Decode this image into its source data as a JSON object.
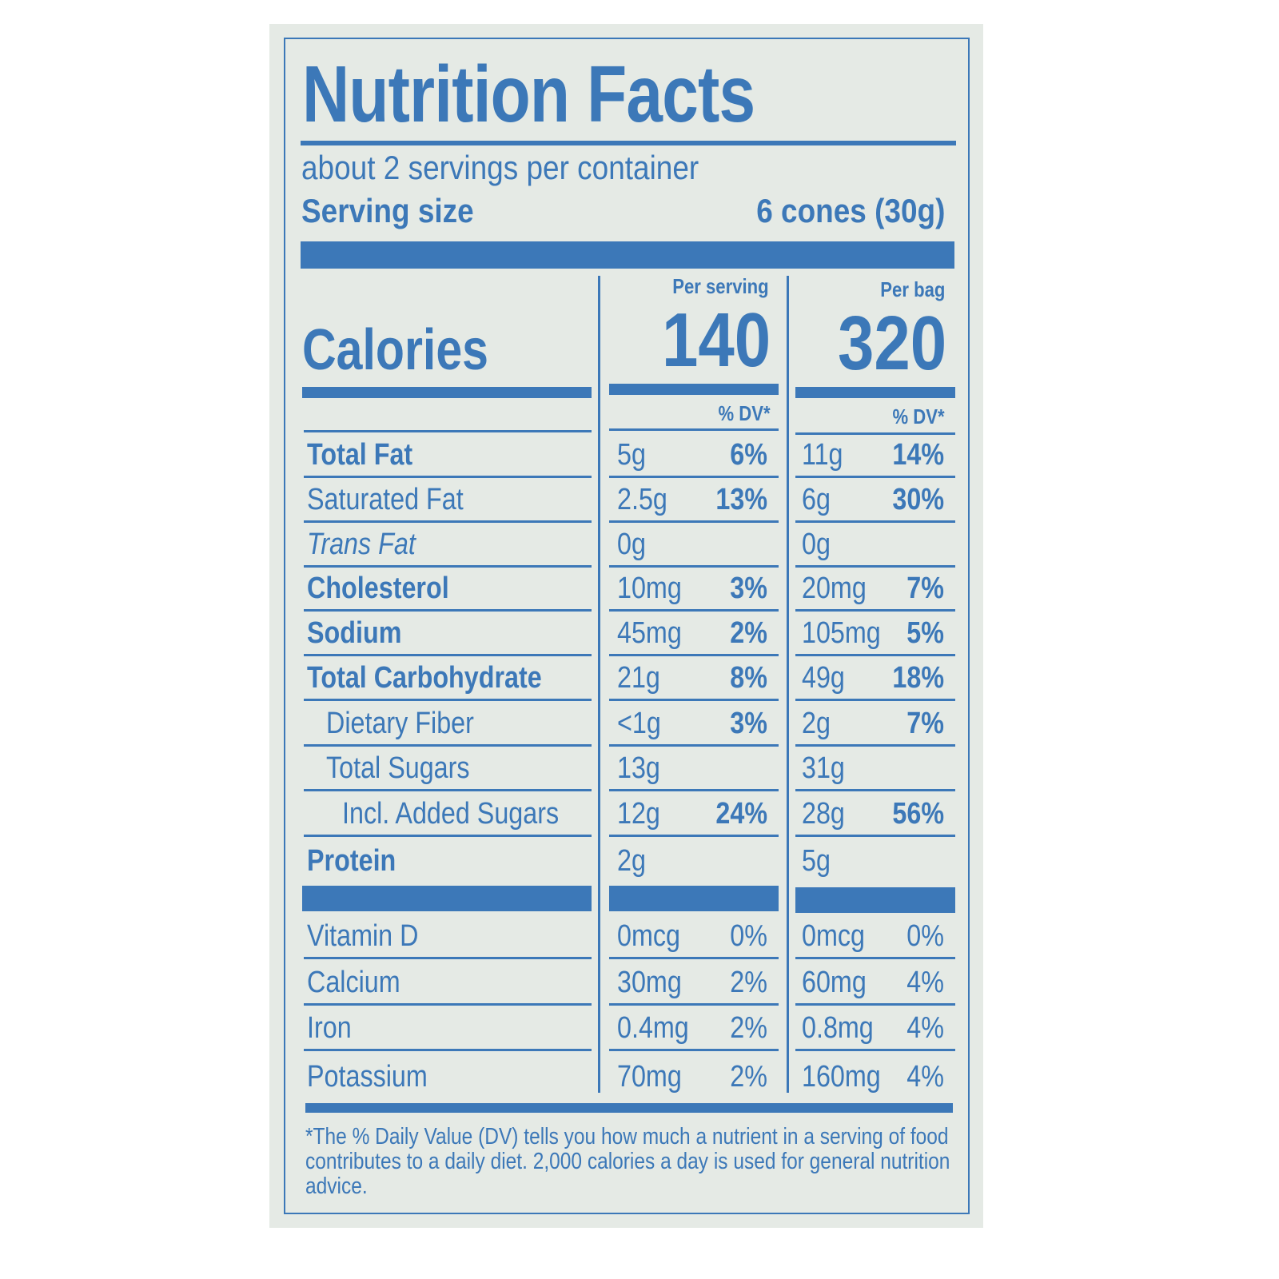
{
  "label": {
    "title": "Nutrition Facts",
    "servings_per_container": "about 2 servings per container",
    "serving_size_label": "Serving size",
    "serving_size_value": "6 cones (30g)",
    "calories_label": "Calories",
    "columns": [
      {
        "header": "Per serving",
        "calories": "140",
        "dv_header": "% DV*"
      },
      {
        "header": "Per bag",
        "calories": "320",
        "dv_header": "% DV*"
      }
    ],
    "nutrients": [
      {
        "name": "Total Fat",
        "style": "bold",
        "indent": 0,
        "serving": "5g",
        "serving_dv": "6%",
        "bag": "11g",
        "bag_dv": "14%"
      },
      {
        "name": "Saturated Fat",
        "style": "normal",
        "indent": 0,
        "serving": "2.5g",
        "serving_dv": "13%",
        "bag": "6g",
        "bag_dv": "30%"
      },
      {
        "name": "Trans Fat",
        "style": "italic",
        "indent": 0,
        "serving": "0g",
        "serving_dv": "",
        "bag": "0g",
        "bag_dv": ""
      },
      {
        "name": "Cholesterol",
        "style": "bold",
        "indent": 0,
        "serving": "10mg",
        "serving_dv": "3%",
        "bag": "20mg",
        "bag_dv": "7%"
      },
      {
        "name": "Sodium",
        "style": "bold",
        "indent": 0,
        "serving": "45mg",
        "serving_dv": "2%",
        "bag": "105mg",
        "bag_dv": "5%"
      },
      {
        "name": "Total Carbohydrate",
        "style": "bold",
        "indent": 0,
        "serving": "21g",
        "serving_dv": "8%",
        "bag": "49g",
        "bag_dv": "18%"
      },
      {
        "name": "Dietary Fiber",
        "style": "normal",
        "indent": 1,
        "serving": "<1g",
        "serving_dv": "3%",
        "bag": "2g",
        "bag_dv": "7%"
      },
      {
        "name": "Total Sugars",
        "style": "normal",
        "indent": 1,
        "serving": "13g",
        "serving_dv": "",
        "bag": "31g",
        "bag_dv": ""
      },
      {
        "name": "Incl. Added Sugars",
        "style": "normal",
        "indent": 2,
        "serving": "12g",
        "serving_dv": "24%",
        "bag": "28g",
        "bag_dv": "56%"
      },
      {
        "name": "Protein",
        "style": "bold",
        "indent": 0,
        "serving": "2g",
        "serving_dv": "",
        "bag": "5g",
        "bag_dv": ""
      }
    ],
    "vitamins": [
      {
        "name": "Vitamin D",
        "serving": "0mcg",
        "serving_dv": "0%",
        "bag": "0mcg",
        "bag_dv": "0%"
      },
      {
        "name": "Calcium",
        "serving": "30mg",
        "serving_dv": "2%",
        "bag": "60mg",
        "bag_dv": "4%"
      },
      {
        "name": "Iron",
        "serving": "0.4mg",
        "serving_dv": "2%",
        "bag": "0.8mg",
        "bag_dv": "4%"
      },
      {
        "name": "Potassium",
        "serving": "70mg",
        "serving_dv": "2%",
        "bag": "160mg",
        "bag_dv": "4%"
      }
    ],
    "footnote": "*The % Daily Value (DV) tells you how much a nutrient in a serving of food contributes to a daily diet. 2,000 calories a day is used for general nutrition advice.",
    "colors": {
      "ink": "#3c78b8",
      "background": "#e5eae5"
    }
  }
}
